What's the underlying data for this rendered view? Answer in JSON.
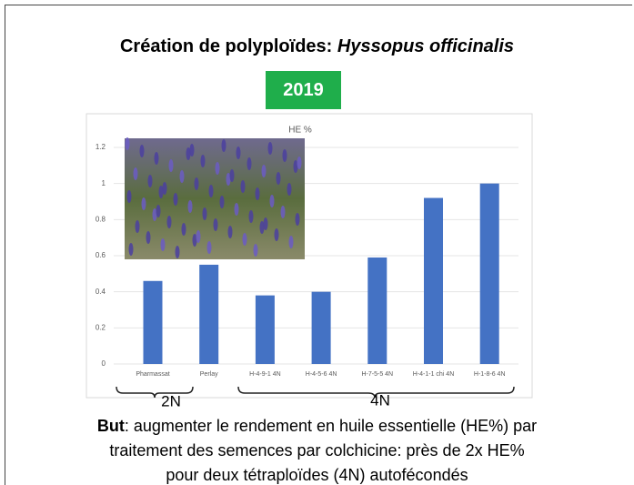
{
  "slide": {
    "title_prefix": "Création de polyploïdes:",
    "title_species": "Hyssopus officinalis",
    "year": "2019",
    "groups": [
      {
        "label": "2N"
      },
      {
        "label": "4N"
      }
    ],
    "caption_bold": "But",
    "caption": ": augmenter le rendement en huile essentielle (HE%) par traitement des semences par colchicine: près de 2x HE% pour deux tétraploïdes (4N) autofécondés"
  },
  "chart_data": {
    "type": "bar",
    "title": "HE %",
    "categories": [
      "Pharmassat",
      "Perlay",
      "H-4-9-1 4N",
      "H-4-5-6 4N",
      "H-7-5-5 4N",
      "H-4-1-1 chi 4N",
      "H-1-8-6 4N"
    ],
    "values": [
      0.46,
      0.55,
      0.38,
      0.4,
      0.59,
      0.92,
      1.0
    ],
    "color": "#4472c4",
    "ylim": [
      0,
      1.2
    ],
    "yticks": [
      0,
      0.2,
      0.4,
      0.6,
      0.8,
      1,
      1.2
    ],
    "grid": true
  }
}
